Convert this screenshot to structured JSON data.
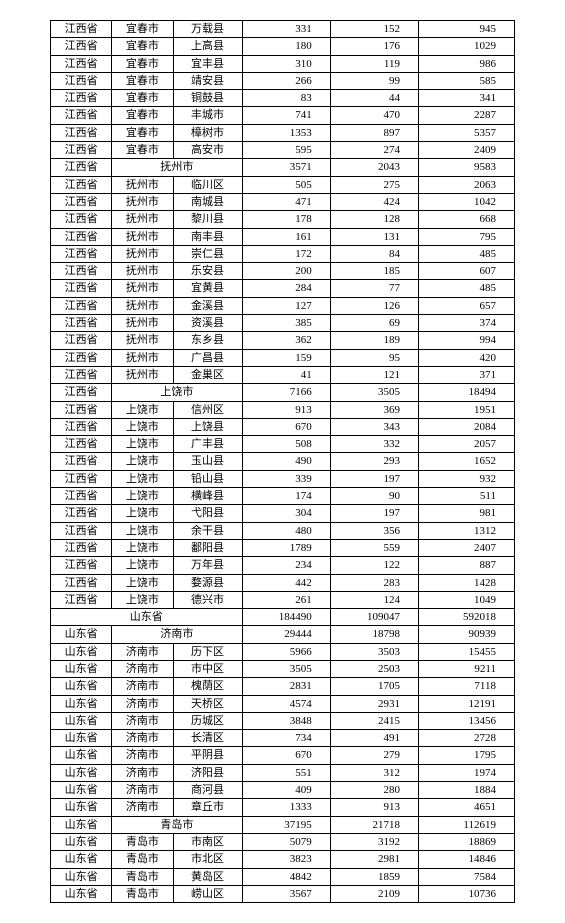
{
  "table": {
    "background_color": "#ffffff",
    "border_color": "#000000",
    "font_size": 11,
    "rows": [
      {
        "type": "row",
        "province": "江西省",
        "city": "宜春市",
        "county": "万载县",
        "v1": "331",
        "v2": "152",
        "v3": "945"
      },
      {
        "type": "row",
        "province": "江西省",
        "city": "宜春市",
        "county": "上高县",
        "v1": "180",
        "v2": "176",
        "v3": "1029"
      },
      {
        "type": "row",
        "province": "江西省",
        "city": "宜春市",
        "county": "宜丰县",
        "v1": "310",
        "v2": "119",
        "v3": "986"
      },
      {
        "type": "row",
        "province": "江西省",
        "city": "宜春市",
        "county": "靖安县",
        "v1": "266",
        "v2": "99",
        "v3": "585"
      },
      {
        "type": "row",
        "province": "江西省",
        "city": "宜春市",
        "county": "铜鼓县",
        "v1": "83",
        "v2": "44",
        "v3": "341"
      },
      {
        "type": "row",
        "province": "江西省",
        "city": "宜春市",
        "county": "丰城市",
        "v1": "741",
        "v2": "470",
        "v3": "2287"
      },
      {
        "type": "row",
        "province": "江西省",
        "city": "宜春市",
        "county": "樟树市",
        "v1": "1353",
        "v2": "897",
        "v3": "5357"
      },
      {
        "type": "row",
        "province": "江西省",
        "city": "宜春市",
        "county": "高安市",
        "v1": "595",
        "v2": "274",
        "v3": "2409"
      },
      {
        "type": "city_header",
        "province": "江西省",
        "label": "抚州市",
        "v1": "3571",
        "v2": "2043",
        "v3": "9583"
      },
      {
        "type": "row",
        "province": "江西省",
        "city": "抚州市",
        "county": "临川区",
        "v1": "505",
        "v2": "275",
        "v3": "2063"
      },
      {
        "type": "row",
        "province": "江西省",
        "city": "抚州市",
        "county": "南城县",
        "v1": "471",
        "v2": "424",
        "v3": "1042"
      },
      {
        "type": "row",
        "province": "江西省",
        "city": "抚州市",
        "county": "黎川县",
        "v1": "178",
        "v2": "128",
        "v3": "668"
      },
      {
        "type": "row",
        "province": "江西省",
        "city": "抚州市",
        "county": "南丰县",
        "v1": "161",
        "v2": "131",
        "v3": "795"
      },
      {
        "type": "row",
        "province": "江西省",
        "city": "抚州市",
        "county": "崇仁县",
        "v1": "172",
        "v2": "84",
        "v3": "485"
      },
      {
        "type": "row",
        "province": "江西省",
        "city": "抚州市",
        "county": "乐安县",
        "v1": "200",
        "v2": "185",
        "v3": "607"
      },
      {
        "type": "row",
        "province": "江西省",
        "city": "抚州市",
        "county": "宜黄县",
        "v1": "284",
        "v2": "77",
        "v3": "485"
      },
      {
        "type": "row",
        "province": "江西省",
        "city": "抚州市",
        "county": "金溪县",
        "v1": "127",
        "v2": "126",
        "v3": "657"
      },
      {
        "type": "row",
        "province": "江西省",
        "city": "抚州市",
        "county": "资溪县",
        "v1": "385",
        "v2": "69",
        "v3": "374"
      },
      {
        "type": "row",
        "province": "江西省",
        "city": "抚州市",
        "county": "东乡县",
        "v1": "362",
        "v2": "189",
        "v3": "994"
      },
      {
        "type": "row",
        "province": "江西省",
        "city": "抚州市",
        "county": "广昌县",
        "v1": "159",
        "v2": "95",
        "v3": "420"
      },
      {
        "type": "row",
        "province": "江西省",
        "city": "抚州市",
        "county": "金巢区",
        "v1": "41",
        "v2": "121",
        "v3": "371"
      },
      {
        "type": "city_header",
        "province": "江西省",
        "label": "上饶市",
        "v1": "7166",
        "v2": "3505",
        "v3": "18494"
      },
      {
        "type": "row",
        "province": "江西省",
        "city": "上饶市",
        "county": "信州区",
        "v1": "913",
        "v2": "369",
        "v3": "1951"
      },
      {
        "type": "row",
        "province": "江西省",
        "city": "上饶市",
        "county": "上饶县",
        "v1": "670",
        "v2": "343",
        "v3": "2084"
      },
      {
        "type": "row",
        "province": "江西省",
        "city": "上饶市",
        "county": "广丰县",
        "v1": "508",
        "v2": "332",
        "v3": "2057"
      },
      {
        "type": "row",
        "province": "江西省",
        "city": "上饶市",
        "county": "玉山县",
        "v1": "490",
        "v2": "293",
        "v3": "1652"
      },
      {
        "type": "row",
        "province": "江西省",
        "city": "上饶市",
        "county": "铅山县",
        "v1": "339",
        "v2": "197",
        "v3": "932"
      },
      {
        "type": "row",
        "province": "江西省",
        "city": "上饶市",
        "county": "横峰县",
        "v1": "174",
        "v2": "90",
        "v3": "511"
      },
      {
        "type": "row",
        "province": "江西省",
        "city": "上饶市",
        "county": "弋阳县",
        "v1": "304",
        "v2": "197",
        "v3": "981"
      },
      {
        "type": "row",
        "province": "江西省",
        "city": "上饶市",
        "county": "余干县",
        "v1": "480",
        "v2": "356",
        "v3": "1312"
      },
      {
        "type": "row",
        "province": "江西省",
        "city": "上饶市",
        "county": "鄱阳县",
        "v1": "1789",
        "v2": "559",
        "v3": "2407"
      },
      {
        "type": "row",
        "province": "江西省",
        "city": "上饶市",
        "county": "万年县",
        "v1": "234",
        "v2": "122",
        "v3": "887"
      },
      {
        "type": "row",
        "province": "江西省",
        "city": "上饶市",
        "county": "婺源县",
        "v1": "442",
        "v2": "283",
        "v3": "1428"
      },
      {
        "type": "row",
        "province": "江西省",
        "city": "上饶市",
        "county": "德兴市",
        "v1": "261",
        "v2": "124",
        "v3": "1049"
      },
      {
        "type": "province_header",
        "label": "山东省",
        "v1": "184490",
        "v2": "109047",
        "v3": "592018"
      },
      {
        "type": "city_header",
        "province": "山东省",
        "label": "济南市",
        "v1": "29444",
        "v2": "18798",
        "v3": "90939"
      },
      {
        "type": "row",
        "province": "山东省",
        "city": "济南市",
        "county": "历下区",
        "v1": "5966",
        "v2": "3503",
        "v3": "15455"
      },
      {
        "type": "row",
        "province": "山东省",
        "city": "济南市",
        "county": "市中区",
        "v1": "3505",
        "v2": "2503",
        "v3": "9211"
      },
      {
        "type": "row",
        "province": "山东省",
        "city": "济南市",
        "county": "槐荫区",
        "v1": "2831",
        "v2": "1705",
        "v3": "7118"
      },
      {
        "type": "row",
        "province": "山东省",
        "city": "济南市",
        "county": "天桥区",
        "v1": "4574",
        "v2": "2931",
        "v3": "12191"
      },
      {
        "type": "row",
        "province": "山东省",
        "city": "济南市",
        "county": "历城区",
        "v1": "3848",
        "v2": "2415",
        "v3": "13456"
      },
      {
        "type": "row",
        "province": "山东省",
        "city": "济南市",
        "county": "长清区",
        "v1": "734",
        "v2": "491",
        "v3": "2728"
      },
      {
        "type": "row",
        "province": "山东省",
        "city": "济南市",
        "county": "平阴县",
        "v1": "670",
        "v2": "279",
        "v3": "1795"
      },
      {
        "type": "row",
        "province": "山东省",
        "city": "济南市",
        "county": "济阳县",
        "v1": "551",
        "v2": "312",
        "v3": "1974"
      },
      {
        "type": "row",
        "province": "山东省",
        "city": "济南市",
        "county": "商河县",
        "v1": "409",
        "v2": "280",
        "v3": "1884"
      },
      {
        "type": "row",
        "province": "山东省",
        "city": "济南市",
        "county": "章丘市",
        "v1": "1333",
        "v2": "913",
        "v3": "4651"
      },
      {
        "type": "city_header",
        "province": "山东省",
        "label": "青岛市",
        "v1": "37195",
        "v2": "21718",
        "v3": "112619"
      },
      {
        "type": "row",
        "province": "山东省",
        "city": "青岛市",
        "county": "市南区",
        "v1": "5079",
        "v2": "3192",
        "v3": "18869"
      },
      {
        "type": "row",
        "province": "山东省",
        "city": "青岛市",
        "county": "市北区",
        "v1": "3823",
        "v2": "2981",
        "v3": "14846"
      },
      {
        "type": "row",
        "province": "山东省",
        "city": "青岛市",
        "county": "黄岛区",
        "v1": "4842",
        "v2": "1859",
        "v3": "7584"
      },
      {
        "type": "row",
        "province": "山东省",
        "city": "青岛市",
        "county": "崂山区",
        "v1": "3567",
        "v2": "2109",
        "v3": "10736"
      }
    ]
  }
}
